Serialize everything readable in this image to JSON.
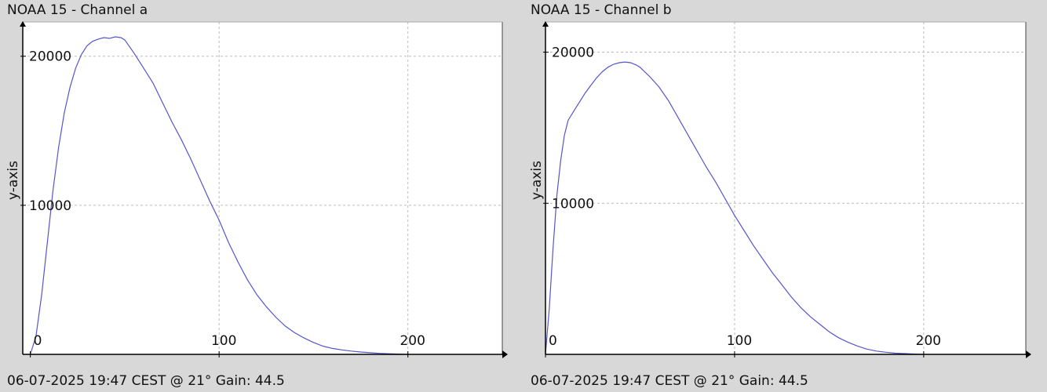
{
  "chart_data": [
    {
      "type": "line",
      "title": "NOAA 15 - Channel a",
      "footer": "06-07-2025 19:47 CEST @ 21° Gain: 44.5",
      "ylabel": "y-axis",
      "xlabel": "",
      "xlim": [
        -4,
        250
      ],
      "ylim": [
        0,
        22300
      ],
      "xticks": [
        0,
        100,
        200
      ],
      "yticks": [
        10000,
        20000
      ],
      "grid": true,
      "line_color": "#5555cc",
      "x": [
        0,
        3,
        6,
        9,
        12,
        15,
        18,
        21,
        24,
        27,
        30,
        33,
        36,
        39,
        42,
        45,
        48,
        50,
        55,
        60,
        65,
        70,
        75,
        80,
        85,
        90,
        95,
        100,
        105,
        110,
        115,
        120,
        125,
        130,
        135,
        140,
        145,
        150,
        155,
        160,
        165,
        170,
        175,
        180,
        185,
        190,
        195,
        200
      ],
      "values": [
        0,
        1200,
        4000,
        7500,
        11000,
        13900,
        16200,
        17900,
        19200,
        20100,
        20700,
        21000,
        21150,
        21250,
        21200,
        21300,
        21250,
        21100,
        20200,
        19200,
        18200,
        16900,
        15600,
        14400,
        13100,
        11700,
        10300,
        9000,
        7500,
        6200,
        5000,
        4000,
        3200,
        2500,
        1900,
        1450,
        1100,
        800,
        550,
        400,
        300,
        220,
        160,
        110,
        70,
        40,
        20,
        0
      ]
    },
    {
      "type": "line",
      "title": "NOAA 15 - Channel b",
      "footer": "06-07-2025 19:47 CEST @ 21° Gain: 44.5",
      "ylabel": "y-axis",
      "xlabel": "",
      "xlim": [
        0,
        254
      ],
      "ylim": [
        0,
        22000
      ],
      "xticks": [
        0,
        100,
        200
      ],
      "yticks": [
        10000,
        20000
      ],
      "grid": true,
      "line_color": "#5555cc",
      "x": [
        0,
        2,
        4,
        6,
        8,
        10,
        12,
        15,
        18,
        21,
        24,
        27,
        30,
        33,
        36,
        39,
        42,
        45,
        48,
        50,
        55,
        60,
        65,
        70,
        75,
        80,
        85,
        90,
        95,
        100,
        105,
        110,
        115,
        120,
        125,
        130,
        135,
        140,
        145,
        150,
        155,
        160,
        165,
        170,
        175,
        180,
        185,
        190,
        195,
        200
      ],
      "values": [
        0,
        3000,
        7000,
        10500,
        12800,
        14500,
        15500,
        16100,
        16700,
        17300,
        17800,
        18300,
        18700,
        19000,
        19200,
        19300,
        19350,
        19300,
        19150,
        19000,
        18400,
        17700,
        16800,
        15700,
        14600,
        13500,
        12400,
        11400,
        10300,
        9200,
        8200,
        7200,
        6300,
        5400,
        4600,
        3800,
        3100,
        2500,
        2000,
        1500,
        1100,
        800,
        550,
        350,
        220,
        140,
        80,
        50,
        20,
        0
      ]
    }
  ]
}
